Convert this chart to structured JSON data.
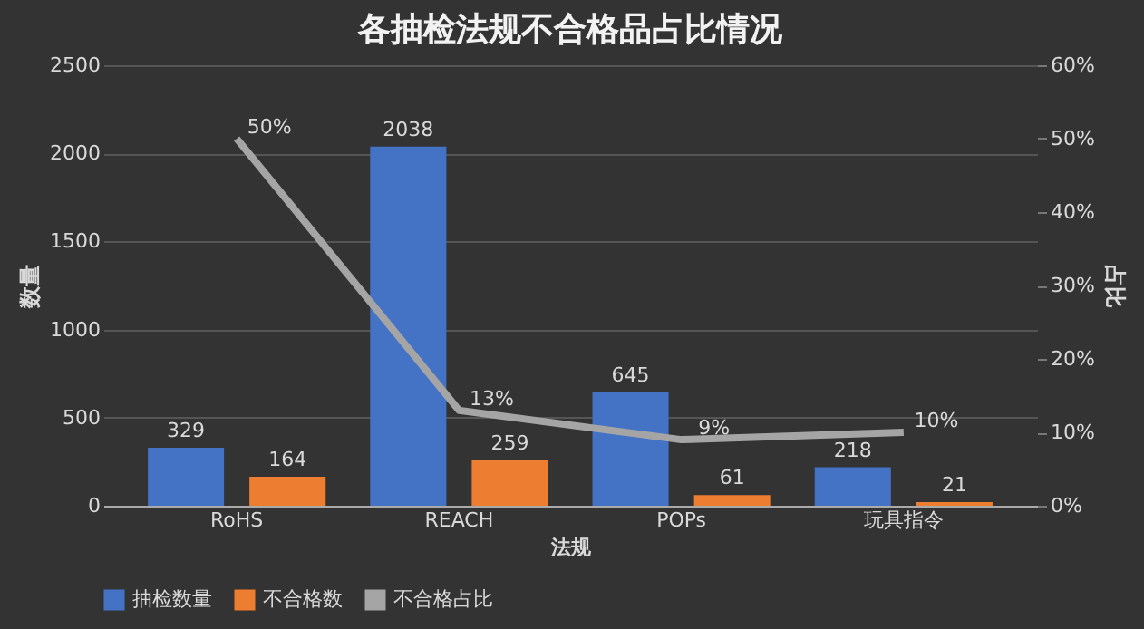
{
  "chart_data": {
    "type": "bar",
    "title": "各抽检法规不合格品占比情况",
    "xlabel": "法规",
    "ylabel": "数量",
    "y2label": "占比",
    "categories": [
      "RoHS",
      "REACH",
      "POPs",
      "玩具指令"
    ],
    "series": [
      {
        "name": "抽检数量",
        "color": "#4472c4",
        "values": [
          329,
          2038,
          645,
          218
        ]
      },
      {
        "name": "不合格数",
        "color": "#ed7d31",
        "values": [
          164,
          259,
          61,
          21
        ]
      },
      {
        "name": "不合格占比",
        "color": "#a5a5a5",
        "type": "line",
        "axis": "y2",
        "values": [
          50,
          13,
          9,
          10
        ],
        "value_labels": [
          "50%",
          "13%",
          "9%",
          "10%"
        ]
      }
    ],
    "ylim": [
      0,
      2500
    ],
    "yticks": [
      0,
      500,
      1000,
      1500,
      2000,
      2500
    ],
    "y2lim": [
      0,
      60
    ],
    "y2ticks": [
      {
        "value": 0,
        "label": "0%"
      },
      {
        "value": 10,
        "label": "10%"
      },
      {
        "value": 20,
        "label": "20%"
      },
      {
        "value": 30,
        "label": "30%"
      },
      {
        "value": 40,
        "label": "40%"
      },
      {
        "value": 50,
        "label": "50%"
      },
      {
        "value": 60,
        "label": "60%"
      }
    ],
    "data_labels": true,
    "grid": "y",
    "legend": "bottom",
    "marker": "none",
    "line_style": "solid"
  }
}
